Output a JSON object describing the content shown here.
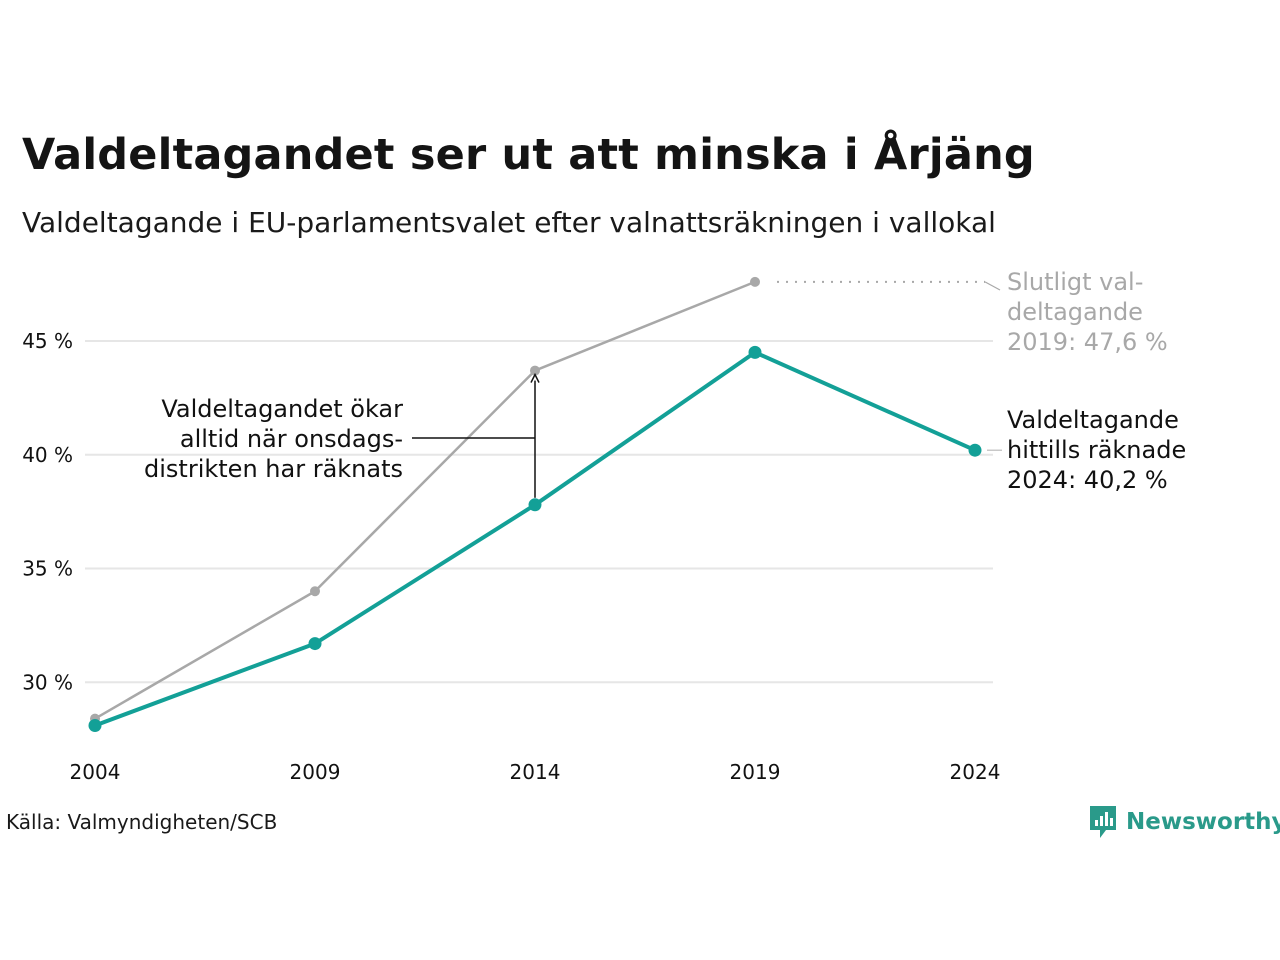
{
  "title": "Valdeltagandet ser ut att minska i Årjäng",
  "subtitle": "Valdeltagande i EU-parlamentsvalet efter valnattsräkningen i vallokal",
  "source": "Källa: Valmyndigheten/SCB",
  "brand": {
    "name": "Newsworthy",
    "icon": "newsworthy-logo-icon"
  },
  "colors": {
    "main": "#13a097",
    "final": "#a8a8a8",
    "grid": "#e6e6e6",
    "text": "#111111"
  },
  "chart_data": {
    "type": "line",
    "x": [
      "2004",
      "2009",
      "2014",
      "2019",
      "2024"
    ],
    "series": [
      {
        "values": [
          28.4,
          34.0,
          43.7,
          47.6,
          null
        ]
      },
      {
        "values": [
          28.1,
          31.7,
          37.8,
          44.5,
          40.2
        ]
      }
    ],
    "ylim": [
      27.5,
      48
    ],
    "yticks": [
      30,
      35,
      40,
      45
    ],
    "ytick_labels": [
      "30 %",
      "35 %",
      "40 %",
      "45 %"
    ],
    "grid": true,
    "annotations": {
      "final_2019": [
        "Slutligt val-",
        "deltagande",
        "2019: 47,6 %"
      ],
      "current_2024": [
        "Valdeltagande",
        "hittills räknade",
        "2024: 40,2 %"
      ],
      "increase_note": [
        "Valdeltagandet ökar",
        "alltid när onsdags-",
        "distrikten har räknats"
      ]
    }
  }
}
